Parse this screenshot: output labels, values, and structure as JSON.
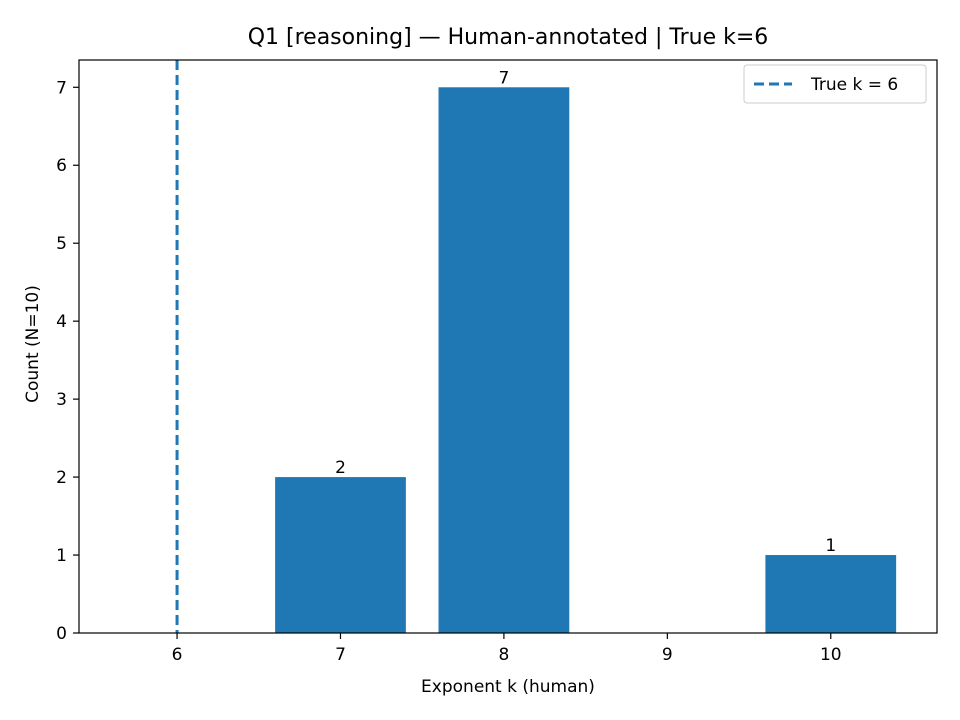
{
  "chart_data": {
    "type": "bar",
    "title": "Q1 [reasoning] — Human-annotated | True k=6",
    "xlabel": "Exponent k (human)",
    "ylabel": "Count (N=10)",
    "categories": [
      7,
      8,
      10
    ],
    "values": [
      2,
      7,
      1
    ],
    "bar_labels": [
      "2",
      "7",
      "1"
    ],
    "bar_color": "#1f77b4",
    "xticks": [
      6,
      7,
      8,
      9,
      10
    ],
    "xtick_labels": [
      "6",
      "7",
      "8",
      "9",
      "10"
    ],
    "yticks": [
      0,
      1,
      2,
      3,
      4,
      5,
      6,
      7
    ],
    "ytick_labels": [
      "0",
      "1",
      "2",
      "3",
      "4",
      "5",
      "6",
      "7"
    ],
    "xlim": [
      5.4,
      10.65
    ],
    "ylim": [
      0,
      7.35
    ],
    "reference_line": {
      "x": 6,
      "style": "dashed",
      "color": "#1f77b4",
      "label": "True k = 6"
    },
    "legend": {
      "position": "top-right",
      "entries": [
        "True k = 6"
      ]
    },
    "grid": false
  }
}
